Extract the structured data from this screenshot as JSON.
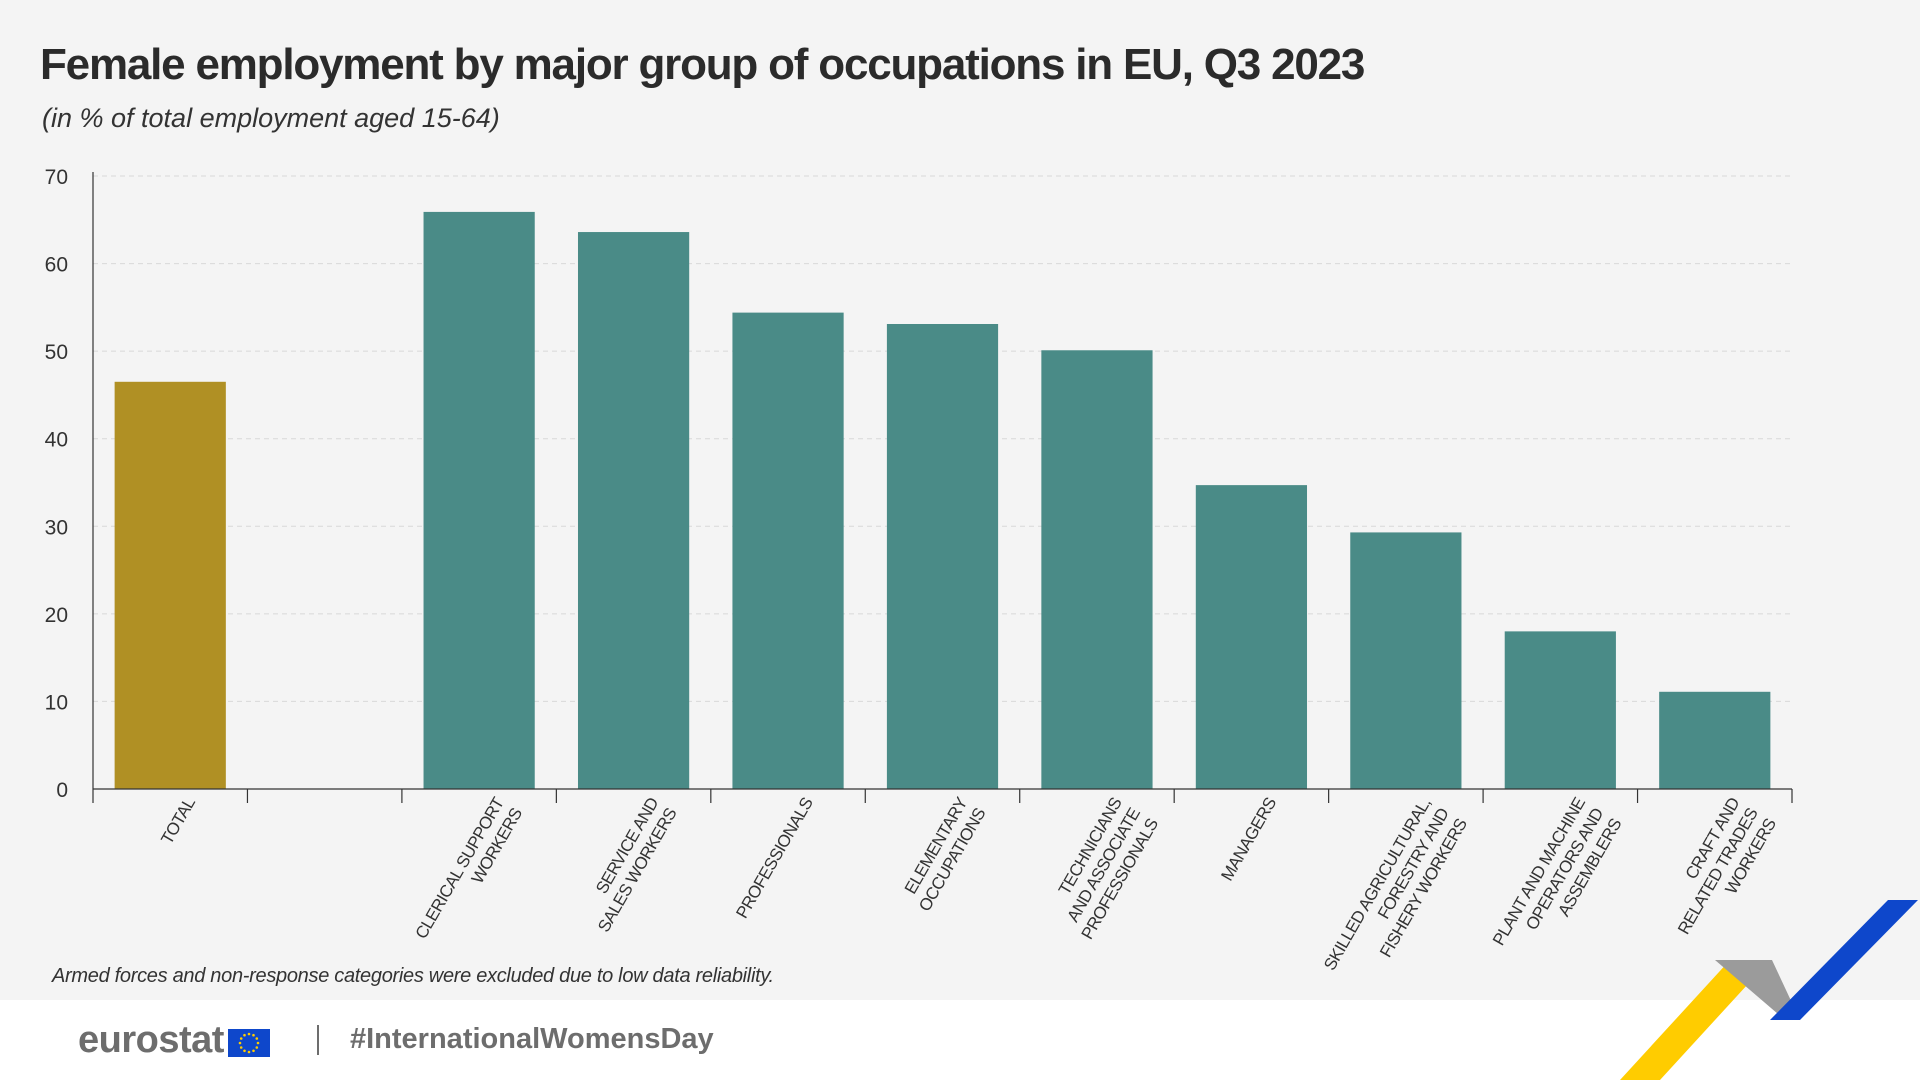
{
  "title": "Female employment by major group of occupations in EU, Q3 2023",
  "subtitle": "(in % of total employment aged 15-64)",
  "footnote": "Armed forces and non-response categories were excluded due to low data reliability.",
  "footer": {
    "logo_text": "eurostat",
    "hashtag": "#InternationalWomensDay"
  },
  "colors": {
    "total_bar": "#b09024",
    "occupation_bar": "#4a8b87",
    "gridline": "#d8d8d8",
    "axis": "#333333",
    "text": "#333333",
    "background": "#f4f4f4",
    "eu_blue": "#0e47cb",
    "eu_yellow": "#ffcc00"
  },
  "icons": {
    "flag": "eu-flag-icon",
    "decoration": "chevron-decoration-icon"
  },
  "chart_data": {
    "type": "bar",
    "title": "Female employment by major group of occupations in EU, Q3 2023",
    "subtitle": "(in % of total employment aged 15-64)",
    "xlabel": "",
    "ylabel": "",
    "ylim": [
      0,
      70
    ],
    "yticks": [
      0,
      10,
      20,
      30,
      40,
      50,
      60,
      70
    ],
    "grid": true,
    "legend": "none",
    "categories": [
      [
        "TOTAL"
      ],
      [],
      [
        "CLERICAL SUPPORT",
        "WORKERS"
      ],
      [
        "SERVICE AND",
        "SALES WORKERS"
      ],
      [
        "PROFESSIONALS"
      ],
      [
        "ELEMENTARY",
        "OCCUPATIONS"
      ],
      [
        "TECHNICIANS",
        "AND ASSOCIATE",
        "PROFESSIONALS"
      ],
      [
        "MANAGERS"
      ],
      [
        "SKILLED AGRICULTURAL,",
        "FORESTRY AND",
        "FISHERY WORKERS"
      ],
      [
        "PLANT AND MACHINE",
        "OPERATORS AND",
        "ASSEMBLERS"
      ],
      [
        "CRAFT AND",
        "RELATED TRADES",
        "WORKERS"
      ]
    ],
    "values": [
      46.5,
      null,
      65.9,
      63.6,
      54.4,
      53.1,
      50.1,
      34.7,
      29.3,
      18.0,
      11.1
    ],
    "highlight_index": 0
  }
}
